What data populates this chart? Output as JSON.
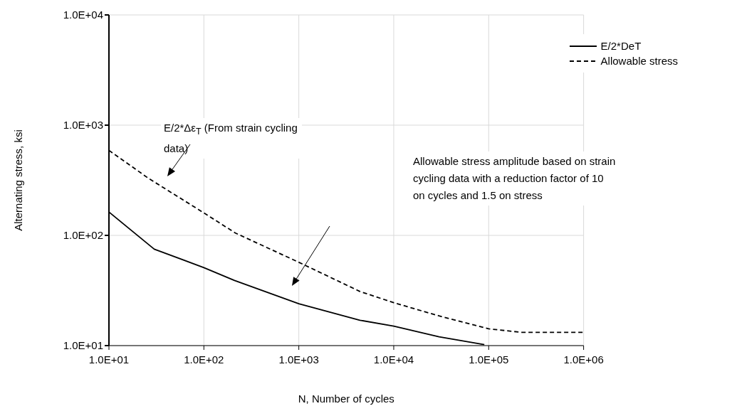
{
  "chart_data": {
    "type": "line",
    "xlabel": "N, Number of cycles",
    "ylabel": "Alternating stress, ksi",
    "log": "xy",
    "xlim": [
      10,
      1000000
    ],
    "ylim": [
      10,
      10000
    ],
    "xticks": [
      {
        "value": 10,
        "label": "1.0E+01"
      },
      {
        "value": 100,
        "label": "1.0E+02"
      },
      {
        "value": 1000,
        "label": "1.0E+03"
      },
      {
        "value": 10000,
        "label": "1.0E+04"
      },
      {
        "value": 100000,
        "label": "1.0E+05"
      },
      {
        "value": 1000000,
        "label": "1.0E+06"
      }
    ],
    "yticks": [
      {
        "value": 10,
        "label": "1.0E+01"
      },
      {
        "value": 100,
        "label": "1.0E+02"
      },
      {
        "value": 1000,
        "label": "1.0E+03"
      },
      {
        "value": 10000,
        "label": "1.0E+04"
      }
    ],
    "grid": true,
    "legend": "top right",
    "marker": "none",
    "series": [
      {
        "name": "E/2*DeT",
        "color": "#000000",
        "line_style": "solid",
        "x": [
          10,
          30,
          100,
          210,
          1000,
          4400,
          10000,
          30000,
          90000
        ],
        "values": [
          163,
          75,
          51,
          39,
          24,
          17,
          15,
          12,
          10.2
        ]
      },
      {
        "name": "Allowable stress",
        "color": "#000000",
        "line_style": "dashed",
        "x": [
          10,
          26,
          100,
          215,
          1000,
          4400,
          10000,
          30000,
          100000,
          220000,
          1000000
        ],
        "values": [
          590,
          330,
          160,
          105,
          57,
          31,
          24.5,
          18.6,
          14.2,
          13.2,
          13.2
        ]
      }
    ],
    "annotations": [
      "E/2*Δε$_{T}$ (From strain cycling data)",
      "Allowable stress amplitude based on strain cycling data with a reduction factor of 10 on cycles and 1.5 on stress"
    ]
  }
}
